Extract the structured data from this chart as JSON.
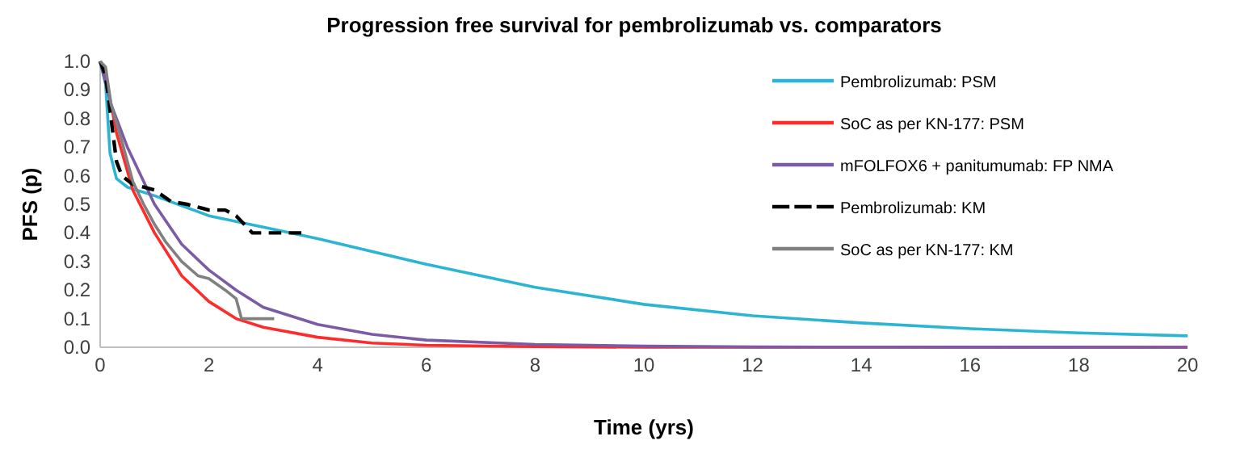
{
  "chart_data": {
    "type": "line",
    "title": "Progression free survival for pembrolizumab vs. comparators",
    "xlabel": "Time (yrs)",
    "ylabel": "PFS (p)",
    "xlim": [
      0,
      20
    ],
    "xticks": [
      0,
      2,
      4,
      6,
      8,
      10,
      12,
      14,
      16,
      18,
      20
    ],
    "ylim": [
      0,
      1
    ],
    "yticks": [
      {
        "value": 0,
        "label": "0.0"
      },
      0.1,
      0.2,
      0.3,
      0.4,
      0.5,
      0.6,
      0.7,
      0.8,
      0.9,
      {
        "value": 1,
        "label": "1.0"
      }
    ],
    "grid": false,
    "legend": "top right",
    "marker": "none",
    "series": [
      {
        "name": "Pembrolizumab: PSM",
        "color": "#2bb5d3",
        "line_style": "solid",
        "x": [
          0,
          0.1,
          0.18,
          0.3,
          0.5,
          1,
          2,
          3,
          4,
          6,
          8,
          10,
          12,
          14,
          16,
          18,
          20
        ],
        "values": [
          1,
          0.92,
          0.68,
          0.59,
          0.56,
          0.53,
          0.46,
          0.42,
          0.38,
          0.29,
          0.21,
          0.15,
          0.11,
          0.085,
          0.065,
          0.05,
          0.04
        ]
      },
      {
        "name": "SoC as per KN-177: PSM",
        "color": "#ff2a2a",
        "line_style": "solid",
        "x": [
          0,
          0.1,
          0.3,
          0.6,
          1,
          1.5,
          2,
          2.5,
          3,
          4,
          5,
          6,
          8,
          10,
          20
        ],
        "values": [
          1,
          0.95,
          0.75,
          0.55,
          0.4,
          0.25,
          0.16,
          0.1,
          0.07,
          0.035,
          0.015,
          0.007,
          0.002,
          0,
          0
        ]
      },
      {
        "name": "mFOLFOX6 + panitumumab: FP NMA",
        "color": "#7b5aa6",
        "line_style": "solid",
        "x": [
          0,
          0.2,
          0.5,
          1,
          1.5,
          2,
          2.5,
          3,
          4,
          5,
          6,
          8,
          10,
          12,
          20
        ],
        "values": [
          1,
          0.85,
          0.7,
          0.5,
          0.36,
          0.27,
          0.2,
          0.14,
          0.08,
          0.045,
          0.025,
          0.01,
          0.004,
          0.001,
          0
        ]
      },
      {
        "name": "Pembrolizumab: KM",
        "color": "#000000",
        "line_style": "dashed",
        "x": [
          0,
          0.1,
          0.2,
          0.3,
          0.4,
          0.6,
          1,
          1.3,
          1.6,
          2,
          2.3,
          2.5,
          2.7,
          2.8,
          3.7
        ],
        "values": [
          1,
          0.95,
          0.8,
          0.65,
          0.6,
          0.57,
          0.55,
          0.51,
          0.5,
          0.48,
          0.48,
          0.46,
          0.42,
          0.4,
          0.4
        ]
      },
      {
        "name": "SoC as per KN-177: KM",
        "color": "#808080",
        "line_style": "solid",
        "x": [
          0,
          0.1,
          0.2,
          0.4,
          0.6,
          0.8,
          1,
          1.2,
          1.5,
          1.8,
          2,
          2.3,
          2.5,
          2.6,
          3.2
        ],
        "values": [
          1,
          0.98,
          0.85,
          0.72,
          0.58,
          0.5,
          0.43,
          0.37,
          0.3,
          0.25,
          0.24,
          0.2,
          0.17,
          0.1,
          0.1
        ]
      }
    ]
  }
}
